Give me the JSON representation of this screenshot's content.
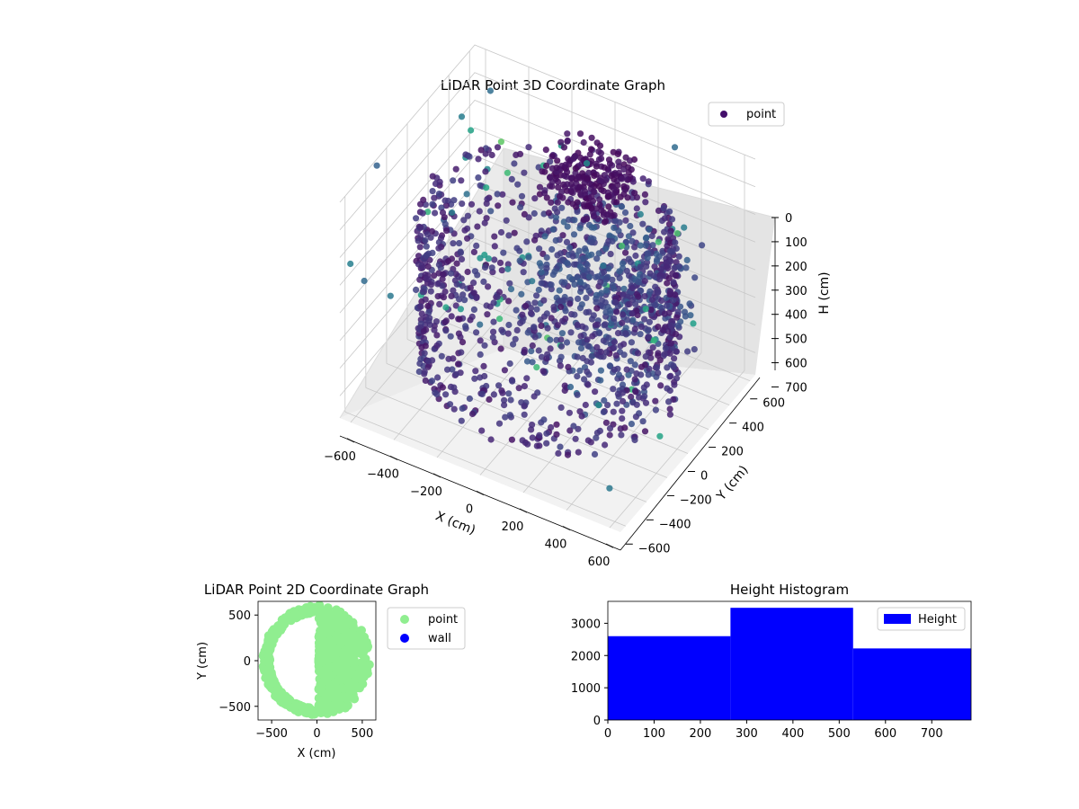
{
  "chart_data": [
    {
      "type": "scatter",
      "subtype": "3d",
      "title": "LiDAR Point 3D Coordinate Graph",
      "xlabel": "X (cm)",
      "ylabel": "Y (cm)",
      "zlabel": "H (cm)",
      "xlim": [
        -650,
        650
      ],
      "ylim": [
        -650,
        650
      ],
      "zlim": [
        0,
        780
      ],
      "z_inverted": true,
      "x_ticks": [
        "−600",
        "−400",
        "−200",
        "0",
        "200",
        "400",
        "600"
      ],
      "y_ticks": [
        "−600",
        "−400",
        "−200",
        "0",
        "200",
        "400",
        "600"
      ],
      "z_ticks": [
        "0",
        "100",
        "200",
        "300",
        "400",
        "500",
        "600",
        "700"
      ],
      "grid": true,
      "legend": {
        "placement": "upper-right",
        "entries": [
          "point"
        ]
      },
      "series": [
        {
          "name": "point",
          "colormap": "viridis"
        }
      ],
      "points_sample_xyh": [
        [
          500,
          0,
          200
        ],
        [
          420,
          300,
          200
        ],
        [
          300,
          420,
          200
        ],
        [
          0,
          520,
          200
        ],
        [
          -300,
          430,
          200
        ],
        [
          -500,
          0,
          200
        ],
        [
          -420,
          -300,
          200
        ],
        [
          0,
          -520,
          200
        ],
        [
          300,
          -420,
          200
        ],
        [
          420,
          -300,
          200
        ],
        [
          500,
          0,
          600
        ],
        [
          420,
          300,
          600
        ],
        [
          0,
          520,
          600
        ],
        [
          -500,
          0,
          600
        ],
        [
          0,
          -520,
          600
        ],
        [
          300,
          -420,
          600
        ],
        [
          100,
          100,
          100
        ],
        [
          150,
          80,
          150
        ],
        [
          0,
          150,
          120
        ],
        [
          -100,
          200,
          300
        ],
        [
          -300,
          100,
          400
        ],
        [
          600,
          100,
          700
        ],
        [
          640,
          -100,
          500
        ],
        [
          -600,
          500,
          300
        ]
      ]
    },
    {
      "type": "scatter",
      "title": "LiDAR Point 2D Coordinate Graph",
      "xlabel": "X (cm)",
      "ylabel": "Y (cm)",
      "xlim": [
        -650,
        650
      ],
      "ylim": [
        -650,
        650
      ],
      "x_ticks": [
        "−500",
        "0",
        "500"
      ],
      "y_ticks": [
        "−500",
        "0",
        "500"
      ],
      "legend": {
        "placement": "outside-right",
        "entries": [
          "point",
          "wall"
        ]
      },
      "series": [
        {
          "name": "point",
          "color": "#90ee90"
        },
        {
          "name": "wall",
          "color": "#0000ff"
        }
      ]
    },
    {
      "type": "bar",
      "subtype": "histogram",
      "title": "Height Histogram",
      "bins": [
        [
          0,
          265
        ],
        [
          265,
          530
        ],
        [
          530,
          790
        ]
      ],
      "values": [
        2600,
        3480,
        2220
      ],
      "xlim": [
        0,
        785
      ],
      "ylim": [
        0,
        3680
      ],
      "x_ticks": [
        "0",
        "100",
        "200",
        "300",
        "400",
        "500",
        "600",
        "700"
      ],
      "y_ticks": [
        "0",
        "1000",
        "2000",
        "3000"
      ],
      "legend": {
        "placement": "upper-right",
        "entries": [
          "Height"
        ]
      },
      "series": [
        {
          "name": "Height",
          "color": "#0000ff"
        }
      ]
    }
  ]
}
